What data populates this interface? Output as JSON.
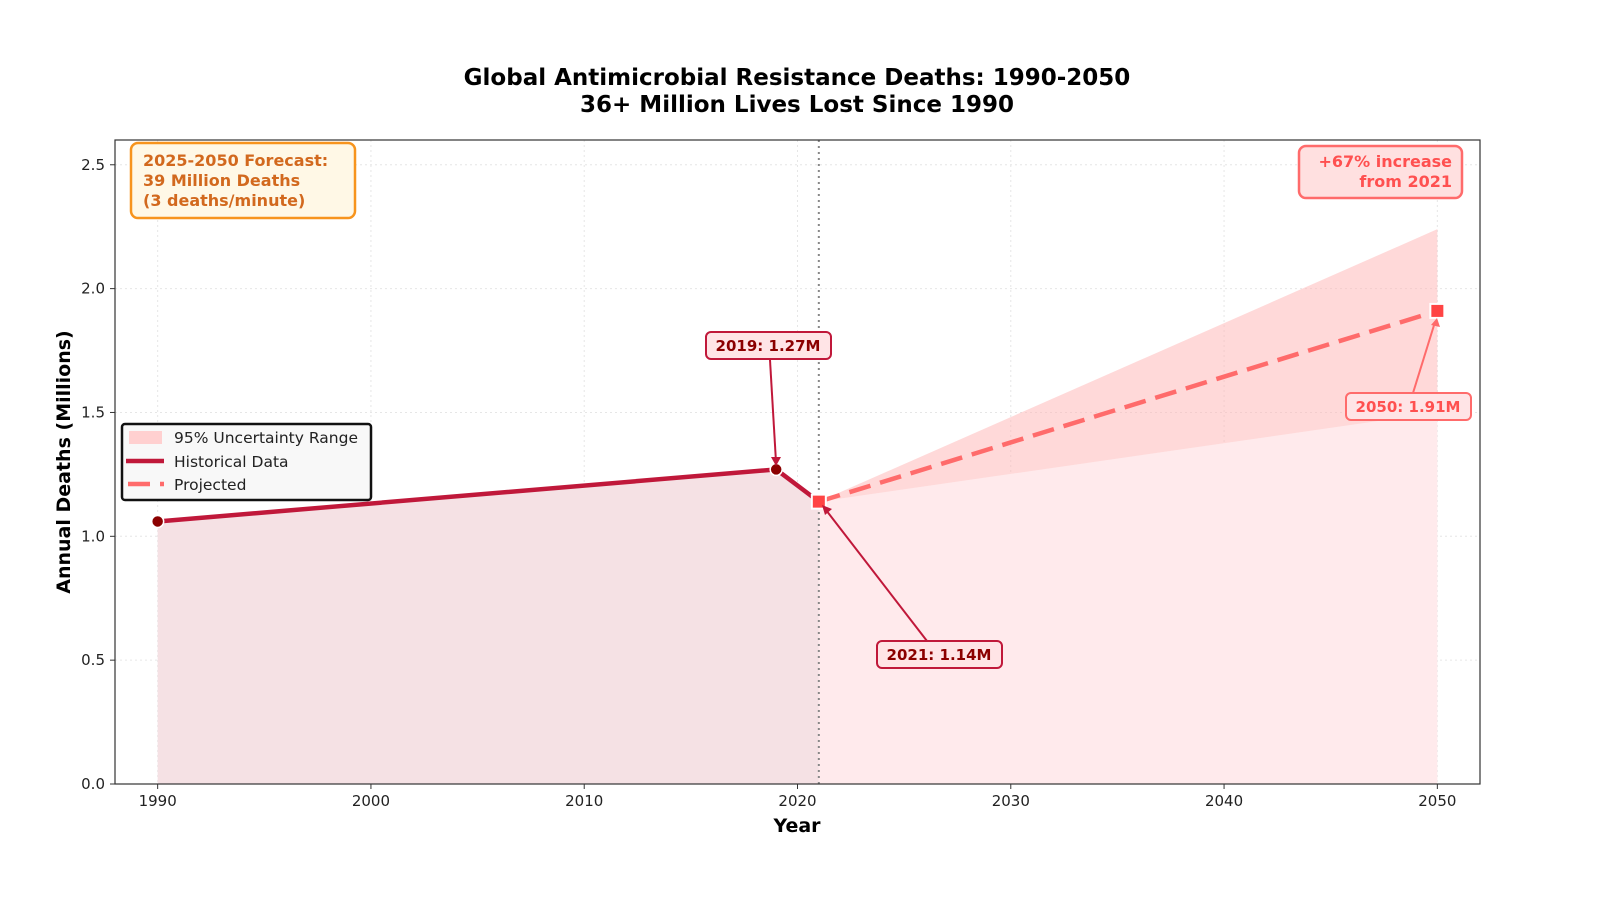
{
  "chart_data": {
    "type": "line",
    "title": "Global Antimicrobial Resistance Deaths: 1990-2050",
    "subtitle": "36+ Million Lives Lost Since 1990",
    "xlabel": "Year",
    "ylabel": "Annual Deaths (Millions)",
    "xlim": [
      1988,
      2052
    ],
    "ylim": [
      0,
      2.6
    ],
    "xticks": [
      1990,
      2000,
      2010,
      2020,
      2030,
      2040,
      2050
    ],
    "yticks": [
      "0.0",
      "0.5",
      "1.0",
      "1.5",
      "2.0",
      "2.5"
    ],
    "grid": true,
    "legend_position": "center-left",
    "series": [
      {
        "name": "Historical Data",
        "x": [
          1990,
          2019,
          2021
        ],
        "y": [
          1.06,
          1.27,
          1.14
        ],
        "color": "#c0183a",
        "style": "solid"
      },
      {
        "name": "Projected",
        "x": [
          2021,
          2050
        ],
        "y": [
          1.14,
          1.91
        ],
        "color": "#ff6b6b",
        "style": "dashed"
      }
    ],
    "uncertainty_band": {
      "name": "95% Uncertainty Range",
      "x": [
        2021,
        2050
      ],
      "lower": [
        1.14,
        1.5
      ],
      "upper": [
        1.14,
        2.24
      ],
      "color": "#ffb3b3"
    },
    "vertical_line_x": 2021,
    "annotations": [
      {
        "text": "2019: 1.27M",
        "x": 2019,
        "y": 1.27
      },
      {
        "text": "2021: 1.14M",
        "x": 2021,
        "y": 1.14
      },
      {
        "text": "2050: 1.91M",
        "x": 2050,
        "y": 1.91
      }
    ],
    "info_boxes": {
      "forecast": [
        "2025-2050 Forecast:",
        "39 Million Deaths",
        "(3 deaths/minute)"
      ],
      "increase": [
        "+67% increase",
        "from 2021"
      ]
    }
  }
}
